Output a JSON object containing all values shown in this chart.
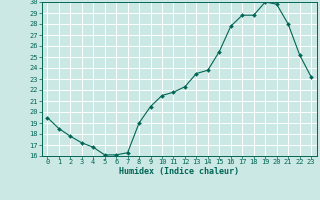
{
  "x": [
    0,
    1,
    2,
    3,
    4,
    5,
    6,
    7,
    8,
    9,
    10,
    11,
    12,
    13,
    14,
    15,
    16,
    17,
    18,
    19,
    20,
    21,
    22,
    23
  ],
  "y": [
    19.5,
    18.5,
    17.8,
    17.2,
    16.8,
    16.1,
    16.1,
    16.3,
    19.0,
    20.5,
    21.5,
    21.8,
    22.3,
    23.5,
    23.8,
    25.5,
    27.8,
    28.8,
    28.8,
    30.0,
    29.8,
    28.0,
    25.2,
    23.2
  ],
  "xlabel": "Humidex (Indice chaleur)",
  "bg_color": "#cce8e4",
  "grid_color": "#ffffff",
  "line_color": "#006655",
  "marker_color": "#006655",
  "ylim": [
    16,
    30
  ],
  "xlim": [
    -0.5,
    23.5
  ],
  "yticks": [
    16,
    17,
    18,
    19,
    20,
    21,
    22,
    23,
    24,
    25,
    26,
    27,
    28,
    29,
    30
  ],
  "xticks": [
    0,
    1,
    2,
    3,
    4,
    5,
    6,
    7,
    8,
    9,
    10,
    11,
    12,
    13,
    14,
    15,
    16,
    17,
    18,
    19,
    20,
    21,
    22,
    23
  ],
  "tick_fontsize": 5.0,
  "xlabel_fontsize": 6.0
}
